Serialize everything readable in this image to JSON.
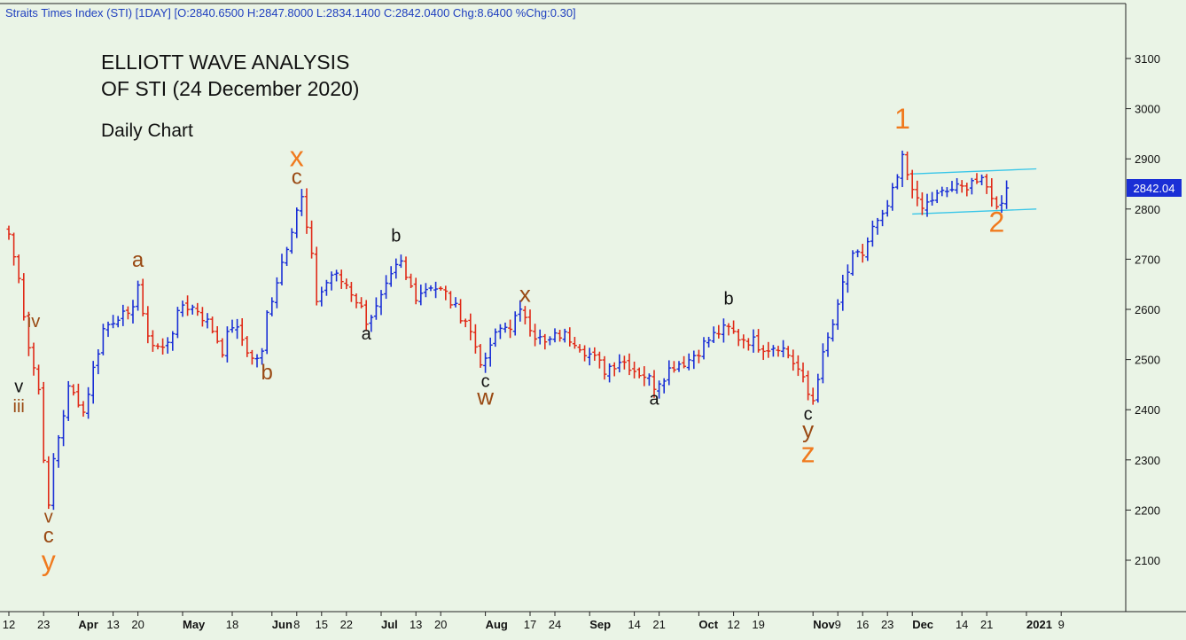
{
  "header": {
    "info": "Straits Times Index (STI) [1DAY] [O:2840.6500 H:2847.8000 L:2834.1400 C:2842.0400 Chg:8.6400 %Chg:0.30]"
  },
  "annotation": {
    "title_line1": "ELLIOTT WAVE ANALYSIS",
    "title_line2": "OF STI (24 December 2020)",
    "subtitle": "Daily Chart"
  },
  "colors": {
    "background": "#eaf4e6",
    "up_bar": "#1a2fd6",
    "down_bar": "#e02a18",
    "channel": "#38c6e8",
    "wave_orange": "#f07a1e",
    "wave_brown": "#9a4a14",
    "wave_black": "#111111",
    "price_tag": "#1a2fd6"
  },
  "chart_data": {
    "type": "ohlc",
    "symbol": "STI",
    "timeframe": "1DAY",
    "last_price": "2842.04",
    "ylim": [
      2020,
      3190
    ],
    "y_ticks": [
      2100,
      2200,
      2300,
      2400,
      2500,
      2600,
      2700,
      2800,
      2900,
      3000,
      3100
    ],
    "y_tick_labels": [
      "2100",
      "2200",
      "2300",
      "2400",
      "2500",
      "2600",
      "2700",
      "2800",
      "2900",
      "3000",
      "3100"
    ],
    "x_ticks": [
      {
        "label": "12",
        "i": 0,
        "major": false
      },
      {
        "label": "23",
        "i": 7,
        "major": false
      },
      {
        "label": "Apr",
        "i": 14,
        "major": true
      },
      {
        "label": "13",
        "i": 21,
        "major": false
      },
      {
        "label": "20",
        "i": 26,
        "major": false
      },
      {
        "label": "May",
        "i": 35,
        "major": true
      },
      {
        "label": "18",
        "i": 45,
        "major": false
      },
      {
        "label": "Jun",
        "i": 53,
        "major": true
      },
      {
        "label": "8",
        "i": 58,
        "major": false
      },
      {
        "label": "15",
        "i": 63,
        "major": false
      },
      {
        "label": "22",
        "i": 68,
        "major": false
      },
      {
        "label": "Jul",
        "i": 75,
        "major": true
      },
      {
        "label": "13",
        "i": 82,
        "major": false
      },
      {
        "label": "20",
        "i": 87,
        "major": false
      },
      {
        "label": "Aug",
        "i": 96,
        "major": true
      },
      {
        "label": "17",
        "i": 105,
        "major": false
      },
      {
        "label": "24",
        "i": 110,
        "major": false
      },
      {
        "label": "Sep",
        "i": 117,
        "major": true
      },
      {
        "label": "14",
        "i": 126,
        "major": false
      },
      {
        "label": "21",
        "i": 131,
        "major": false
      },
      {
        "label": "Oct",
        "i": 139,
        "major": true
      },
      {
        "label": "12",
        "i": 146,
        "major": false
      },
      {
        "label": "19",
        "i": 151,
        "major": false
      },
      {
        "label": "Nov",
        "i": 162,
        "major": true
      },
      {
        "label": "9",
        "i": 167,
        "major": false
      },
      {
        "label": "16",
        "i": 172,
        "major": false
      },
      {
        "label": "23",
        "i": 177,
        "major": false
      },
      {
        "label": "Dec",
        "i": 182,
        "major": true
      },
      {
        "label": "14",
        "i": 192,
        "major": false
      },
      {
        "label": "21",
        "i": 197,
        "major": false
      },
      {
        "label": "2021",
        "i": 205,
        "major": true
      },
      {
        "label": "9",
        "i": 212,
        "major": false
      }
    ],
    "anchors": [
      [
        0,
        2750
      ],
      [
        2,
        2660
      ],
      [
        4,
        2530
      ],
      [
        6,
        2440
      ],
      [
        7,
        2310
      ],
      [
        8,
        2200
      ],
      [
        9,
        2300
      ],
      [
        12,
        2440
      ],
      [
        14,
        2420
      ],
      [
        15,
        2395
      ],
      [
        17,
        2480
      ],
      [
        19,
        2560
      ],
      [
        22,
        2590
      ],
      [
        24,
        2580
      ],
      [
        26,
        2650
      ],
      [
        27,
        2580
      ],
      [
        29,
        2530
      ],
      [
        31,
        2520
      ],
      [
        33,
        2560
      ],
      [
        35,
        2610
      ],
      [
        38,
        2600
      ],
      [
        41,
        2560
      ],
      [
        43,
        2520
      ],
      [
        45,
        2570
      ],
      [
        47,
        2540
      ],
      [
        49,
        2500
      ],
      [
        51,
        2510
      ],
      [
        52,
        2590
      ],
      [
        54,
        2660
      ],
      [
        56,
        2730
      ],
      [
        58,
        2800
      ],
      [
        59,
        2820
      ],
      [
        61,
        2700
      ],
      [
        62,
        2620
      ],
      [
        65,
        2670
      ],
      [
        68,
        2650
      ],
      [
        70,
        2620
      ],
      [
        72,
        2580
      ],
      [
        74,
        2600
      ],
      [
        76,
        2640
      ],
      [
        78,
        2680
      ],
      [
        79,
        2690
      ],
      [
        80,
        2660
      ],
      [
        82,
        2630
      ],
      [
        85,
        2650
      ],
      [
        88,
        2630
      ],
      [
        90,
        2600
      ],
      [
        92,
        2580
      ],
      [
        95,
        2500
      ],
      [
        96,
        2490
      ],
      [
        97,
        2530
      ],
      [
        99,
        2560
      ],
      [
        101,
        2570
      ],
      [
        103,
        2590
      ],
      [
        104,
        2590
      ],
      [
        106,
        2550
      ],
      [
        108,
        2530
      ],
      [
        111,
        2550
      ],
      [
        114,
        2540
      ],
      [
        116,
        2520
      ],
      [
        118,
        2500
      ],
      [
        120,
        2480
      ],
      [
        123,
        2500
      ],
      [
        125,
        2490
      ],
      [
        126,
        2480
      ],
      [
        128,
        2470
      ],
      [
        130,
        2450
      ],
      [
        132,
        2470
      ],
      [
        134,
        2490
      ],
      [
        137,
        2500
      ],
      [
        139,
        2520
      ],
      [
        141,
        2540
      ],
      [
        143,
        2555
      ],
      [
        145,
        2560
      ],
      [
        147,
        2545
      ],
      [
        149,
        2540
      ],
      [
        151,
        2530
      ],
      [
        153,
        2525
      ],
      [
        155,
        2530
      ],
      [
        157,
        2510
      ],
      [
        159,
        2480
      ],
      [
        161,
        2430
      ],
      [
        162,
        2420
      ],
      [
        163,
        2470
      ],
      [
        165,
        2540
      ],
      [
        167,
        2600
      ],
      [
        168,
        2650
      ],
      [
        170,
        2700
      ],
      [
        172,
        2710
      ],
      [
        174,
        2760
      ],
      [
        176,
        2780
      ],
      [
        178,
        2830
      ],
      [
        179,
        2860
      ],
      [
        180,
        2900
      ],
      [
        181,
        2870
      ],
      [
        182,
        2850
      ],
      [
        183,
        2810
      ],
      [
        184,
        2800
      ],
      [
        186,
        2820
      ],
      [
        188,
        2830
      ],
      [
        190,
        2840
      ],
      [
        192,
        2840
      ],
      [
        194,
        2860
      ],
      [
        196,
        2850
      ],
      [
        198,
        2830
      ],
      [
        199,
        2800
      ],
      [
        200,
        2820
      ],
      [
        201,
        2842
      ]
    ],
    "channel": {
      "upper": [
        [
          182,
          2870
        ],
        [
          207,
          2880
        ]
      ],
      "lower": [
        [
          182,
          2790
        ],
        [
          207,
          2800
        ]
      ]
    },
    "labels": [
      {
        "text": "iv",
        "i": 5,
        "v": 2565,
        "color": "wave_brown",
        "size": 20
      },
      {
        "text": "v",
        "i": 2,
        "v": 2435,
        "color": "wave_black",
        "size": 20
      },
      {
        "text": "iii",
        "i": 2,
        "v": 2395,
        "color": "wave_brown",
        "size": 20
      },
      {
        "text": "v",
        "i": 8,
        "v": 2175,
        "color": "wave_brown",
        "size": 20
      },
      {
        "text": "c",
        "i": 8,
        "v": 2135,
        "color": "wave_brown",
        "size": 24
      },
      {
        "text": "y",
        "i": 8,
        "v": 2080,
        "color": "wave_orange",
        "size": 32
      },
      {
        "text": "a",
        "i": 26,
        "v": 2685,
        "color": "wave_brown",
        "size": 24
      },
      {
        "text": "b",
        "i": 52,
        "v": 2460,
        "color": "wave_brown",
        "size": 24
      },
      {
        "text": "x",
        "i": 58,
        "v": 2885,
        "color": "wave_orange",
        "size": 32
      },
      {
        "text": "c",
        "i": 58,
        "v": 2850,
        "color": "wave_brown",
        "size": 24
      },
      {
        "text": "a",
        "i": 72,
        "v": 2540,
        "color": "wave_black",
        "size": 20
      },
      {
        "text": "b",
        "i": 78,
        "v": 2735,
        "color": "wave_black",
        "size": 20
      },
      {
        "text": "c",
        "i": 96,
        "v": 2445,
        "color": "wave_black",
        "size": 20
      },
      {
        "text": "w",
        "i": 96,
        "v": 2410,
        "color": "wave_brown",
        "size": 26
      },
      {
        "text": "x",
        "i": 104,
        "v": 2615,
        "color": "wave_brown",
        "size": 26
      },
      {
        "text": "a",
        "i": 130,
        "v": 2410,
        "color": "wave_black",
        "size": 20
      },
      {
        "text": "b",
        "i": 145,
        "v": 2610,
        "color": "wave_black",
        "size": 20
      },
      {
        "text": "c",
        "i": 161,
        "v": 2380,
        "color": "wave_black",
        "size": 20
      },
      {
        "text": "y",
        "i": 161,
        "v": 2345,
        "color": "wave_brown",
        "size": 26
      },
      {
        "text": "z",
        "i": 161,
        "v": 2295,
        "color": "wave_orange",
        "size": 32
      },
      {
        "text": "1",
        "i": 180,
        "v": 2960,
        "color": "wave_orange",
        "size": 32
      },
      {
        "text": "2",
        "i": 199,
        "v": 2755,
        "color": "wave_orange",
        "size": 32
      }
    ]
  }
}
